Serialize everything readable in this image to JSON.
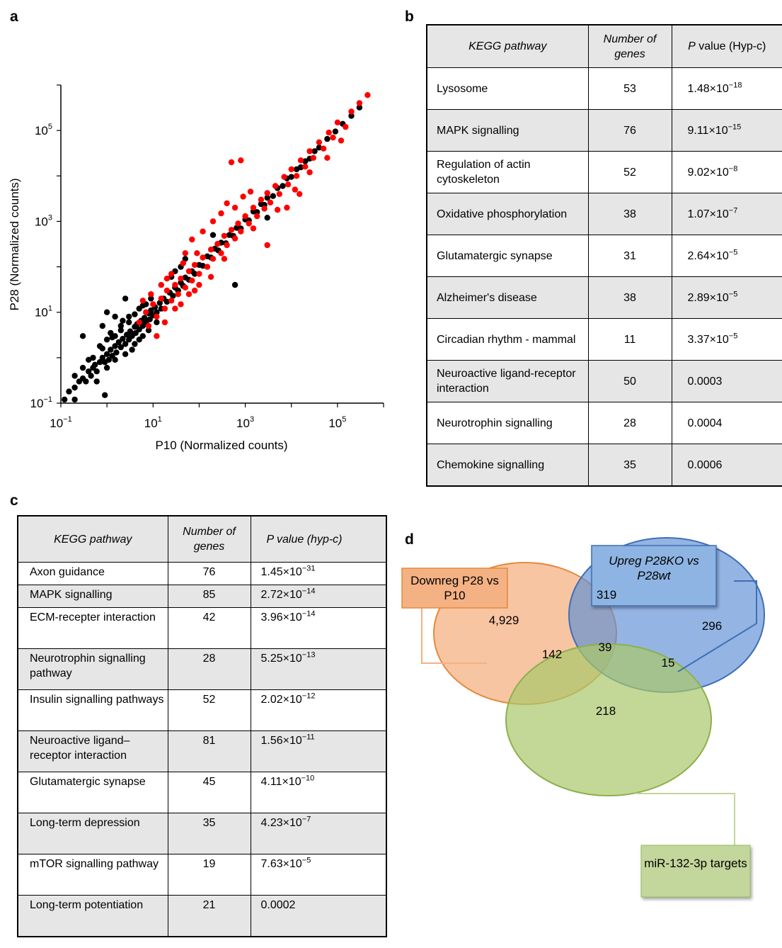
{
  "panel_labels": {
    "a": "a",
    "b": "b",
    "c": "c",
    "d": "d"
  },
  "chart_data": {
    "type": "scatter",
    "xlabel": "P10 (Normalized counts)",
    "ylabel": "P28 (Normalized counts)",
    "xscale": "log",
    "yscale": "log",
    "xlim": [
      0.1,
      1000000
    ],
    "ylim": [
      0.1,
      1000000
    ],
    "x_ticks": [
      {
        "base": "10",
        "exp": "−1",
        "value": 0.1
      },
      {
        "base": "10",
        "exp": "1",
        "value": 10
      },
      {
        "base": "10",
        "exp": "3",
        "value": 1000
      },
      {
        "base": "10",
        "exp": "5",
        "value": 100000
      }
    ],
    "y_ticks": [
      {
        "base": "10",
        "exp": "−1",
        "value": 0.1
      },
      {
        "base": "10",
        "exp": "1",
        "value": 10
      },
      {
        "base": "10",
        "exp": "3",
        "value": 1000
      },
      {
        "base": "10",
        "exp": "5",
        "value": 100000
      }
    ],
    "series": [
      {
        "color": "#000000",
        "points": [
          [
            0.12,
            0.12
          ],
          [
            0.15,
            0.18
          ],
          [
            0.2,
            0.22
          ],
          [
            0.25,
            0.3
          ],
          [
            0.3,
            0.35
          ],
          [
            0.35,
            0.3
          ],
          [
            0.4,
            0.5
          ],
          [
            0.45,
            0.4
          ],
          [
            0.5,
            0.6
          ],
          [
            0.55,
            0.7
          ],
          [
            0.6,
            0.5
          ],
          [
            0.7,
            0.8
          ],
          [
            0.8,
            1.0
          ],
          [
            0.9,
            0.8
          ],
          [
            1.0,
            1.2
          ],
          [
            1.1,
            0.9
          ],
          [
            1.2,
            1.5
          ],
          [
            1.3,
            1.1
          ],
          [
            1.5,
            1.8
          ],
          [
            1.6,
            1.3
          ],
          [
            1.8,
            2.2
          ],
          [
            2.0,
            1.7
          ],
          [
            2.2,
            2.6
          ],
          [
            2.5,
            2.0
          ],
          [
            2.7,
            3.2
          ],
          [
            3.0,
            2.5
          ],
          [
            3.2,
            3.8
          ],
          [
            3.5,
            3.0
          ],
          [
            4.0,
            4.8
          ],
          [
            4.2,
            3.5
          ],
          [
            4.5,
            5.5
          ],
          [
            5.0,
            4.2
          ],
          [
            5.5,
            6.5
          ],
          [
            6.0,
            5.0
          ],
          [
            6.5,
            7.5
          ],
          [
            7.0,
            6.0
          ],
          [
            8.0,
            9.5
          ],
          [
            8.5,
            7.0
          ],
          [
            9.0,
            11
          ],
          [
            10,
            8.5
          ],
          [
            11,
            13
          ],
          [
            12,
            10
          ],
          [
            14,
            16
          ],
          [
            15,
            12
          ],
          [
            17,
            20
          ],
          [
            20,
            17
          ],
          [
            23,
            27
          ],
          [
            27,
            23
          ],
          [
            30,
            35
          ],
          [
            35,
            30
          ],
          [
            40,
            45
          ],
          [
            45,
            38
          ],
          [
            50,
            58
          ],
          [
            60,
            52
          ],
          [
            70,
            80
          ],
          [
            80,
            70
          ],
          [
            100,
            110
          ],
          [
            120,
            105
          ],
          [
            150,
            170
          ],
          [
            180,
            160
          ],
          [
            220,
            250
          ],
          [
            260,
            230
          ],
          [
            300,
            340
          ],
          [
            380,
            330
          ],
          [
            450,
            500
          ],
          [
            550,
            480
          ],
          [
            650,
            720
          ],
          [
            800,
            700
          ],
          [
            1000,
            1100
          ],
          [
            1200,
            1050
          ],
          [
            1500,
            1650
          ],
          [
            1800,
            1600
          ],
          [
            2200,
            2400
          ],
          [
            2600,
            2300
          ],
          [
            3000,
            3300
          ],
          [
            4000,
            3600
          ],
          [
            5000,
            5400
          ],
          [
            6500,
            6000
          ],
          [
            8000,
            8800
          ],
          [
            10000,
            9500
          ],
          [
            13000,
            14000
          ],
          [
            16000,
            15500
          ],
          [
            20000,
            21000
          ],
          [
            25000,
            24000
          ],
          [
            32000,
            35000
          ],
          [
            40000,
            42000
          ],
          [
            60000,
            65000
          ],
          [
            90000,
            95000
          ],
          [
            130000,
            140000
          ],
          [
            200000,
            210000
          ],
          [
            300000,
            320000
          ],
          [
            0.3,
            0.6
          ],
          [
            0.5,
            1.0
          ],
          [
            0.8,
            1.6
          ],
          [
            1.0,
            2.5
          ],
          [
            1.5,
            3.0
          ],
          [
            2.0,
            4.0
          ],
          [
            3.0,
            6.0
          ],
          [
            0.6,
            0.3
          ],
          [
            1.0,
            0.6
          ],
          [
            1.5,
            0.9
          ],
          [
            2.5,
            1.2
          ],
          [
            4.0,
            2.0
          ],
          [
            6.0,
            3.0
          ],
          [
            0.2,
            0.4
          ],
          [
            2.0,
            5.0
          ],
          [
            3.0,
            8.0
          ],
          [
            5.0,
            12
          ],
          [
            7.0,
            15
          ],
          [
            1.2,
            3.5
          ],
          [
            2.2,
            6.5
          ],
          [
            4.0,
            9.0
          ],
          [
            6.0,
            14
          ],
          [
            9.0,
            20
          ],
          [
            0.4,
            0.9
          ],
          [
            0.7,
            1.8
          ],
          [
            1.3,
            2.8
          ],
          [
            3.5,
            1.5
          ],
          [
            5.0,
            2.5
          ],
          [
            8.0,
            4.0
          ],
          [
            12,
            6
          ],
          [
            1.0,
            10
          ],
          [
            2.5,
            20
          ],
          [
            0.3,
            3
          ],
          [
            0.8,
            5
          ],
          [
            1.5,
            8
          ],
          [
            600,
            40
          ],
          [
            30,
            80
          ],
          [
            50,
            150
          ],
          [
            25,
            60
          ],
          [
            40,
            100
          ],
          [
            200,
            500
          ],
          [
            3000,
            1200
          ],
          [
            0.9,
            0.15
          ],
          [
            0.2,
            0.12
          ]
        ]
      },
      {
        "color": "#ff0000",
        "points": [
          [
            5,
            6
          ],
          [
            7,
            10
          ],
          [
            8,
            5
          ],
          [
            10,
            15
          ],
          [
            12,
            8
          ],
          [
            15,
            20
          ],
          [
            18,
            12
          ],
          [
            20,
            30
          ],
          [
            25,
            18
          ],
          [
            30,
            40
          ],
          [
            35,
            25
          ],
          [
            40,
            55
          ],
          [
            50,
            35
          ],
          [
            60,
            80
          ],
          [
            70,
            50
          ],
          [
            80,
            110
          ],
          [
            100,
            70
          ],
          [
            120,
            160
          ],
          [
            150,
            100
          ],
          [
            180,
            240
          ],
          [
            200,
            150
          ],
          [
            250,
            320
          ],
          [
            300,
            200
          ],
          [
            350,
            480
          ],
          [
            400,
            300
          ],
          [
            500,
            650
          ],
          [
            600,
            420
          ],
          [
            700,
            900
          ],
          [
            800,
            600
          ],
          [
            1000,
            1300
          ],
          [
            1200,
            900
          ],
          [
            1500,
            2000
          ],
          [
            1800,
            1300
          ],
          [
            2200,
            3000
          ],
          [
            2600,
            1900
          ],
          [
            3000,
            4200
          ],
          [
            3500,
            2600
          ],
          [
            4500,
            6000
          ],
          [
            5500,
            4000
          ],
          [
            7000,
            9500
          ],
          [
            8500,
            6500
          ],
          [
            10000,
            14000
          ],
          [
            13000,
            10000
          ],
          [
            16000,
            22000
          ],
          [
            20000,
            16000
          ],
          [
            25000,
            35000
          ],
          [
            30000,
            25000
          ],
          [
            40000,
            55000
          ],
          [
            50000,
            40000
          ],
          [
            65000,
            90000
          ],
          [
            80000,
            70000
          ],
          [
            100000,
            150000
          ],
          [
            150000,
            120000
          ],
          [
            200000,
            260000
          ],
          [
            300000,
            400000
          ],
          [
            450000,
            600000
          ],
          [
            30,
            12
          ],
          [
            60,
            25
          ],
          [
            100,
            40
          ],
          [
            50,
            200
          ],
          [
            70,
            400
          ],
          [
            120,
            600
          ],
          [
            200,
            1000
          ],
          [
            300,
            1500
          ],
          [
            400,
            2500
          ],
          [
            500,
            20000
          ],
          [
            800,
            22000
          ],
          [
            40,
            15
          ],
          [
            80,
            30
          ],
          [
            15,
            40
          ],
          [
            25,
            70
          ],
          [
            6,
            18
          ],
          [
            9,
            25
          ],
          [
            12,
            3
          ],
          [
            18,
            6
          ],
          [
            350,
            150
          ],
          [
            1500,
            700
          ],
          [
            5000,
            1800
          ],
          [
            12000,
            5000
          ],
          [
            25000,
            12000
          ],
          [
            60000,
            25000
          ],
          [
            120000,
            60000
          ],
          [
            3000,
            300
          ],
          [
            8000,
            2000
          ],
          [
            15000,
            4000
          ],
          [
            180,
            60
          ],
          [
            90,
            200
          ],
          [
            45,
            120
          ],
          [
            20,
            55
          ],
          [
            600,
            2000
          ],
          [
            900,
            3500
          ],
          [
            1300,
            4500
          ]
        ]
      }
    ]
  },
  "table_b": {
    "headers": {
      "pathway": "KEGG pathway",
      "genes": "Number of genes",
      "pvalue_p": "P",
      "pvalue_rest": " value (Hyp-c)"
    },
    "rows": [
      {
        "pathway": "Lysosome",
        "genes": "53",
        "mant": "1.48×10",
        "exp": "−18"
      },
      {
        "pathway": "MAPK signalling",
        "genes": "76",
        "mant": "9.11×10",
        "exp": "−15"
      },
      {
        "pathway": "Regulation of actin cytoskeleton",
        "genes": "52",
        "mant": "9.02×10",
        "exp": "−8"
      },
      {
        "pathway": "Oxidative phosphorylation",
        "genes": "38",
        "mant": "1.07×10",
        "exp": "−7"
      },
      {
        "pathway": "Glutamatergic synapse",
        "genes": "31",
        "mant": "2.64×10",
        "exp": "−5"
      },
      {
        "pathway": "Alzheimer's disease",
        "genes": "38",
        "mant": "2.89×10",
        "exp": "−5"
      },
      {
        "pathway": "Circadian rhythm - mammal",
        "genes": "11",
        "mant": "3.37×10",
        "exp": "−5"
      },
      {
        "pathway": "Neuroactive ligand-receptor interaction",
        "genes": "50",
        "mant": "0.0003",
        "exp": ""
      },
      {
        "pathway": "Neurotrophin signalling",
        "genes": "28",
        "mant": "0.0004",
        "exp": ""
      },
      {
        "pathway": "Chemokine signalling",
        "genes": "35",
        "mant": "0.0006",
        "exp": ""
      }
    ]
  },
  "table_c": {
    "headers": {
      "pathway": "KEGG pathway",
      "genes": "Number of genes",
      "pvalue_p": "P",
      "pvalue_rest": " value (hyp-c)"
    },
    "rows": [
      {
        "pathway": "Axon guidance",
        "genes": "76",
        "mant": "1.45×10",
        "exp": "−31"
      },
      {
        "pathway": "MAPK signalling",
        "genes": "85",
        "mant": "2.72×10",
        "exp": "−14"
      },
      {
        "pathway": "ECM-recepter interaction",
        "genes": "42",
        "mant": "3.96×10",
        "exp": "−14"
      },
      {
        "pathway": "Neurotrophin signalling pathway",
        "genes": "28",
        "mant": "5.25×10",
        "exp": "−13"
      },
      {
        "pathway": "Insulin signalling pathways",
        "genes": "52",
        "mant": "2.02×10",
        "exp": "−12"
      },
      {
        "pathway": "Neuroactive ligand–receptor interaction",
        "genes": "81",
        "mant": "1.56×10",
        "exp": "−11"
      },
      {
        "pathway": "Glutamatergic synapse",
        "genes": "45",
        "mant": "4.11×10",
        "exp": "−10"
      },
      {
        "pathway": "Long-term depression",
        "genes": "35",
        "mant": "4.23×10",
        "exp": "−7"
      },
      {
        "pathway": "mTOR signalling pathway",
        "genes": "19",
        "mant": "7.63×10",
        "exp": "−5"
      },
      {
        "pathway": "Long-term potentiation",
        "genes": "21",
        "mant": "0.0002",
        "exp": ""
      }
    ]
  },
  "venn": {
    "labels": {
      "downreg": "Downreg P28 vs P10",
      "upreg": "Upreg P28KO vs P28wt",
      "mir": "miR-132-3p targets"
    },
    "counts": {
      "downreg_only": "4,929",
      "downreg_upreg": "319",
      "upreg_only": "296",
      "all_three": "39",
      "downreg_mir": "142",
      "upreg_mir": "15",
      "mir_only": "218"
    },
    "colors": {
      "downreg": "#f4b183",
      "upreg": "#8eb4e3",
      "mir": "#c3d69b"
    }
  }
}
